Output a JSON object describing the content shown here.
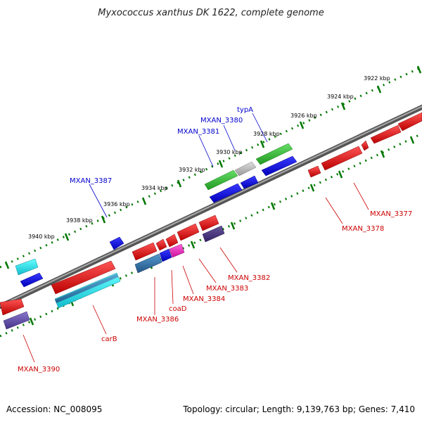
{
  "header": {
    "title": "Myxococcus xanthus DK 1622, complete genome"
  },
  "footer": {
    "accession": "Accession: NC_008095",
    "topology": "Topology: circular; Length: 9,139,763 bp; Genes: 7,410"
  },
  "colors": {
    "forward_strand": "#1a1aff",
    "reverse_strand": "#e01010",
    "green_gene": "#33bb33",
    "grey_gene": "#bbbbbb",
    "cyan_gene": "#22dddd",
    "steelblue_gene": "#3377aa",
    "purple_gene": "#6655aa",
    "dark_purple_gene": "#443377",
    "magenta_gene": "#ee22bb",
    "backbone": "#777777",
    "tick": "#007700",
    "label_blue": "#0000cc",
    "label_red": "#cc0000"
  },
  "ruler": {
    "ticks": [
      {
        "label": "3922 kbp"
      },
      {
        "label": "3924 kbp"
      },
      {
        "label": "3926 kbp"
      },
      {
        "label": "3928 kbp"
      },
      {
        "label": "3930 kbp"
      },
      {
        "label": "3932 kbp"
      },
      {
        "label": "3934 kbp"
      },
      {
        "label": "3936 kbp"
      },
      {
        "label": "3938 kbp"
      },
      {
        "label": "3940 kbp"
      }
    ]
  },
  "gene_labels": {
    "typA": "typA",
    "mxan_3380": "MXAN_3380",
    "mxan_3381": "MXAN_3381",
    "mxan_3387": "MXAN_3387",
    "mxan_3377": "MXAN_3377",
    "mxan_3378": "MXAN_3378",
    "mxan_3382": "MXAN_3382",
    "mxan_3383": "MXAN_3383",
    "mxan_3384": "MXAN_3384",
    "coaD": "coaD",
    "mxan_3386": "MXAN_3386",
    "carB": "carB",
    "mxan_3390": "MXAN_3390"
  }
}
